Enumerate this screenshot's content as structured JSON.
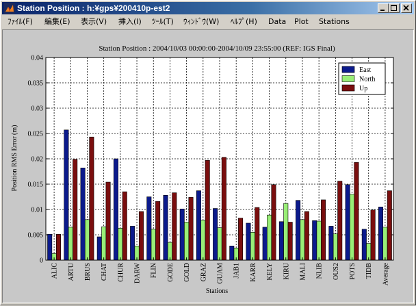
{
  "window": {
    "title": "Station Position : h:¥gps¥200410p-est2",
    "controls": [
      "minimize-icon",
      "maximize-icon",
      "close-icon"
    ]
  },
  "menu": [
    "ﾌｧｲﾙ(F)",
    "編集(E)",
    "表示(V)",
    "挿入(I)",
    "ﾂｰﾙ(T)",
    "ｳｨﾝﾄﾞｳ(W)",
    "ﾍﾙﾌﾟ(H)",
    "Data",
    "Plot",
    "Stations"
  ],
  "colors": {
    "east": "#0b1a8c",
    "north": "#99ee77",
    "up": "#7a0e0e",
    "plot_bg": "#ffffff",
    "figure_bg": "#c8c8c8"
  },
  "chart_data": {
    "type": "bar",
    "title": "Station Position : 2004/10/03 00:00:00-2004/10/09 23:55:00 (REF: IGS Final)",
    "xlabel": "Stations",
    "ylabel": "Position RMS Error (m)",
    "ylim": [
      0,
      0.04
    ],
    "yticks": [
      "0",
      "0.005",
      "0.01",
      "0.015",
      "0.02",
      "0.025",
      "0.03",
      "0.035",
      "0.04"
    ],
    "grid": true,
    "legend_position": "top-right",
    "categories": [
      "ALIC",
      "ARTU",
      "BRUS",
      "CHAT",
      "CHUR",
      "DARW",
      "FLIN",
      "GODE",
      "GOLD",
      "GRAZ",
      "GUAM",
      "JAB1",
      "KARR",
      "KELY",
      "KIRU",
      "MALI",
      "NLIB",
      "OUS2",
      "POTS",
      "TIDB",
      "Average"
    ],
    "series": [
      {
        "name": "East",
        "values": [
          0.0051,
          0.0257,
          0.0182,
          0.0046,
          0.02,
          0.0067,
          0.0125,
          0.0128,
          0.0101,
          0.0137,
          0.0102,
          0.0028,
          0.0073,
          0.0065,
          0.0076,
          0.0118,
          0.0078,
          0.0067,
          0.0149,
          0.0061,
          0.0105
        ]
      },
      {
        "name": "North",
        "values": [
          0.0013,
          0.0065,
          0.008,
          0.0066,
          0.0063,
          0.0028,
          0.0061,
          0.0035,
          0.0075,
          0.0079,
          0.0064,
          0.0024,
          0.0055,
          0.0089,
          0.0112,
          0.008,
          0.0077,
          0.0052,
          0.013,
          0.0033,
          0.0065
        ]
      },
      {
        "name": "Up",
        "values": [
          0.0051,
          0.0199,
          0.0243,
          0.0154,
          0.0135,
          0.0096,
          0.0116,
          0.0133,
          0.0124,
          0.0197,
          0.0203,
          0.0083,
          0.0104,
          0.0149,
          0.0075,
          0.0096,
          0.0119,
          0.0156,
          0.0193,
          0.0099,
          0.0137
        ]
      }
    ]
  }
}
